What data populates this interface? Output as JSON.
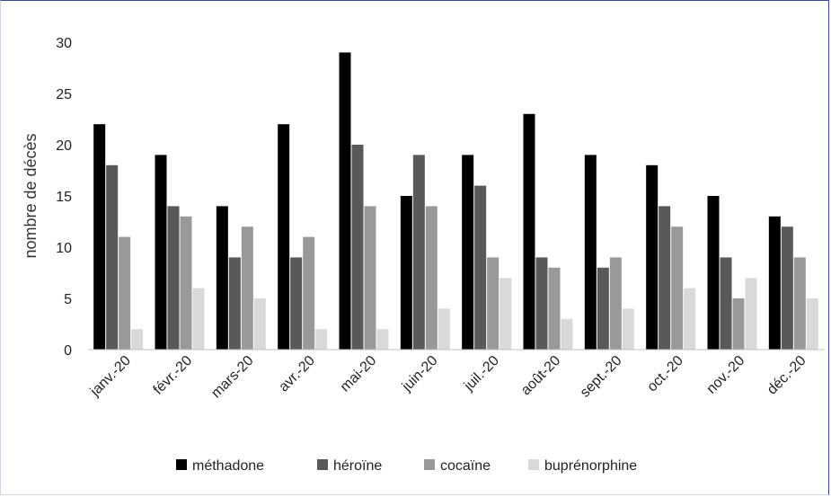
{
  "chart_data": {
    "type": "bar",
    "title": "",
    "xlabel": "",
    "ylabel": "nombre de décès",
    "ylim": [
      0,
      30
    ],
    "yticks": [
      0,
      5,
      10,
      15,
      20,
      25,
      30
    ],
    "grid": false,
    "legend_position": "bottom",
    "categories": [
      "janv.-20",
      "févr.-20",
      "mars-20",
      "avr.-20",
      "mai-20",
      "juin-20",
      "juil.-20",
      "août-20",
      "sept.-20",
      "oct.-20",
      "nov.-20",
      "déc.-20"
    ],
    "series": [
      {
        "name": "méthadone",
        "color": "#000000",
        "values": [
          22,
          19,
          14,
          22,
          29,
          15,
          19,
          23,
          19,
          18,
          15,
          13
        ]
      },
      {
        "name": "héroïne",
        "color": "#595959",
        "values": [
          18,
          14,
          9,
          9,
          20,
          19,
          16,
          9,
          8,
          14,
          9,
          12
        ]
      },
      {
        "name": "cocaïne",
        "color": "#999999",
        "values": [
          11,
          13,
          12,
          11,
          14,
          14,
          9,
          8,
          9,
          12,
          5,
          9
        ]
      },
      {
        "name": "buprénorphine",
        "color": "#d9d9d9",
        "values": [
          2,
          6,
          5,
          2,
          2,
          4,
          7,
          3,
          4,
          6,
          7,
          5
        ]
      }
    ]
  }
}
